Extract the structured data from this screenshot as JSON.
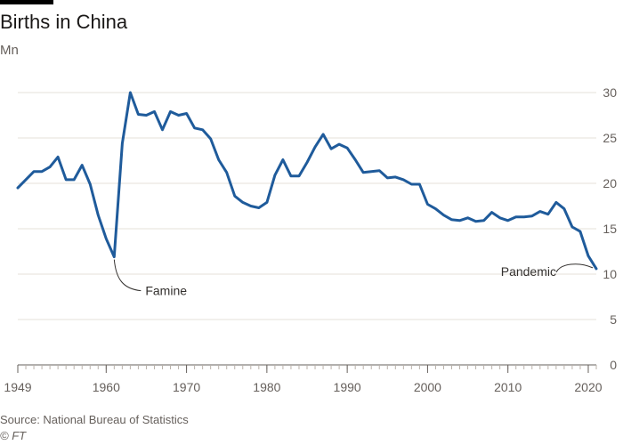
{
  "chart_data": {
    "type": "line",
    "title": "Births in China",
    "ylabel": "Mn",
    "xlim": [
      1949,
      2021
    ],
    "ylim": [
      0,
      30
    ],
    "x_ticks": [
      1949,
      1960,
      1970,
      1980,
      1990,
      2000,
      2010,
      2020
    ],
    "y_ticks": [
      0,
      5,
      10,
      15,
      20,
      25,
      30
    ],
    "grid": true,
    "line_color": "#1f5b9b",
    "series": [
      {
        "x": [
          1949,
          1950,
          1951,
          1952,
          1953,
          1954,
          1955,
          1956,
          1957,
          1958,
          1959,
          1960,
          1961,
          1962,
          1963,
          1964,
          1965,
          1966,
          1967,
          1968,
          1969,
          1970,
          1971,
          1972,
          1973,
          1974,
          1975,
          1976,
          1977,
          1978,
          1979,
          1980,
          1981,
          1982,
          1983,
          1984,
          1985,
          1986,
          1987,
          1988,
          1989,
          1990,
          1991,
          1992,
          1993,
          1994,
          1995,
          1996,
          1997,
          1998,
          1999,
          2000,
          2001,
          2002,
          2003,
          2004,
          2005,
          2006,
          2007,
          2008,
          2009,
          2010,
          2011,
          2012,
          2013,
          2014,
          2015,
          2016,
          2017,
          2018,
          2019,
          2020,
          2021
        ],
        "y": [
          19.5,
          20.4,
          21.3,
          21.3,
          21.8,
          22.9,
          20.4,
          20.4,
          22.0,
          19.9,
          16.5,
          13.9,
          11.9,
          24.4,
          30.0,
          27.6,
          27.5,
          27.9,
          25.9,
          27.9,
          27.5,
          27.7,
          26.1,
          25.9,
          24.9,
          22.6,
          21.2,
          18.6,
          17.9,
          17.5,
          17.3,
          17.9,
          20.9,
          22.6,
          20.8,
          20.8,
          22.3,
          24.0,
          25.4,
          23.8,
          24.3,
          23.9,
          22.6,
          21.2,
          21.3,
          21.4,
          20.6,
          20.7,
          20.4,
          19.9,
          19.9,
          17.7,
          17.2,
          16.5,
          16.0,
          15.9,
          16.2,
          15.8,
          15.9,
          16.8,
          16.2,
          15.9,
          16.3,
          16.3,
          16.4,
          16.9,
          16.6,
          17.9,
          17.2,
          15.2,
          14.7,
          12.0,
          10.6
        ]
      }
    ],
    "annotations": [
      {
        "label": "Famine",
        "x": 1961,
        "y": 11.9
      },
      {
        "label": "Pandemic",
        "x": 2021,
        "y": 10.6
      }
    ]
  },
  "footer": {
    "source": "Source: National Bureau of Statistics",
    "credit": "© FT"
  }
}
